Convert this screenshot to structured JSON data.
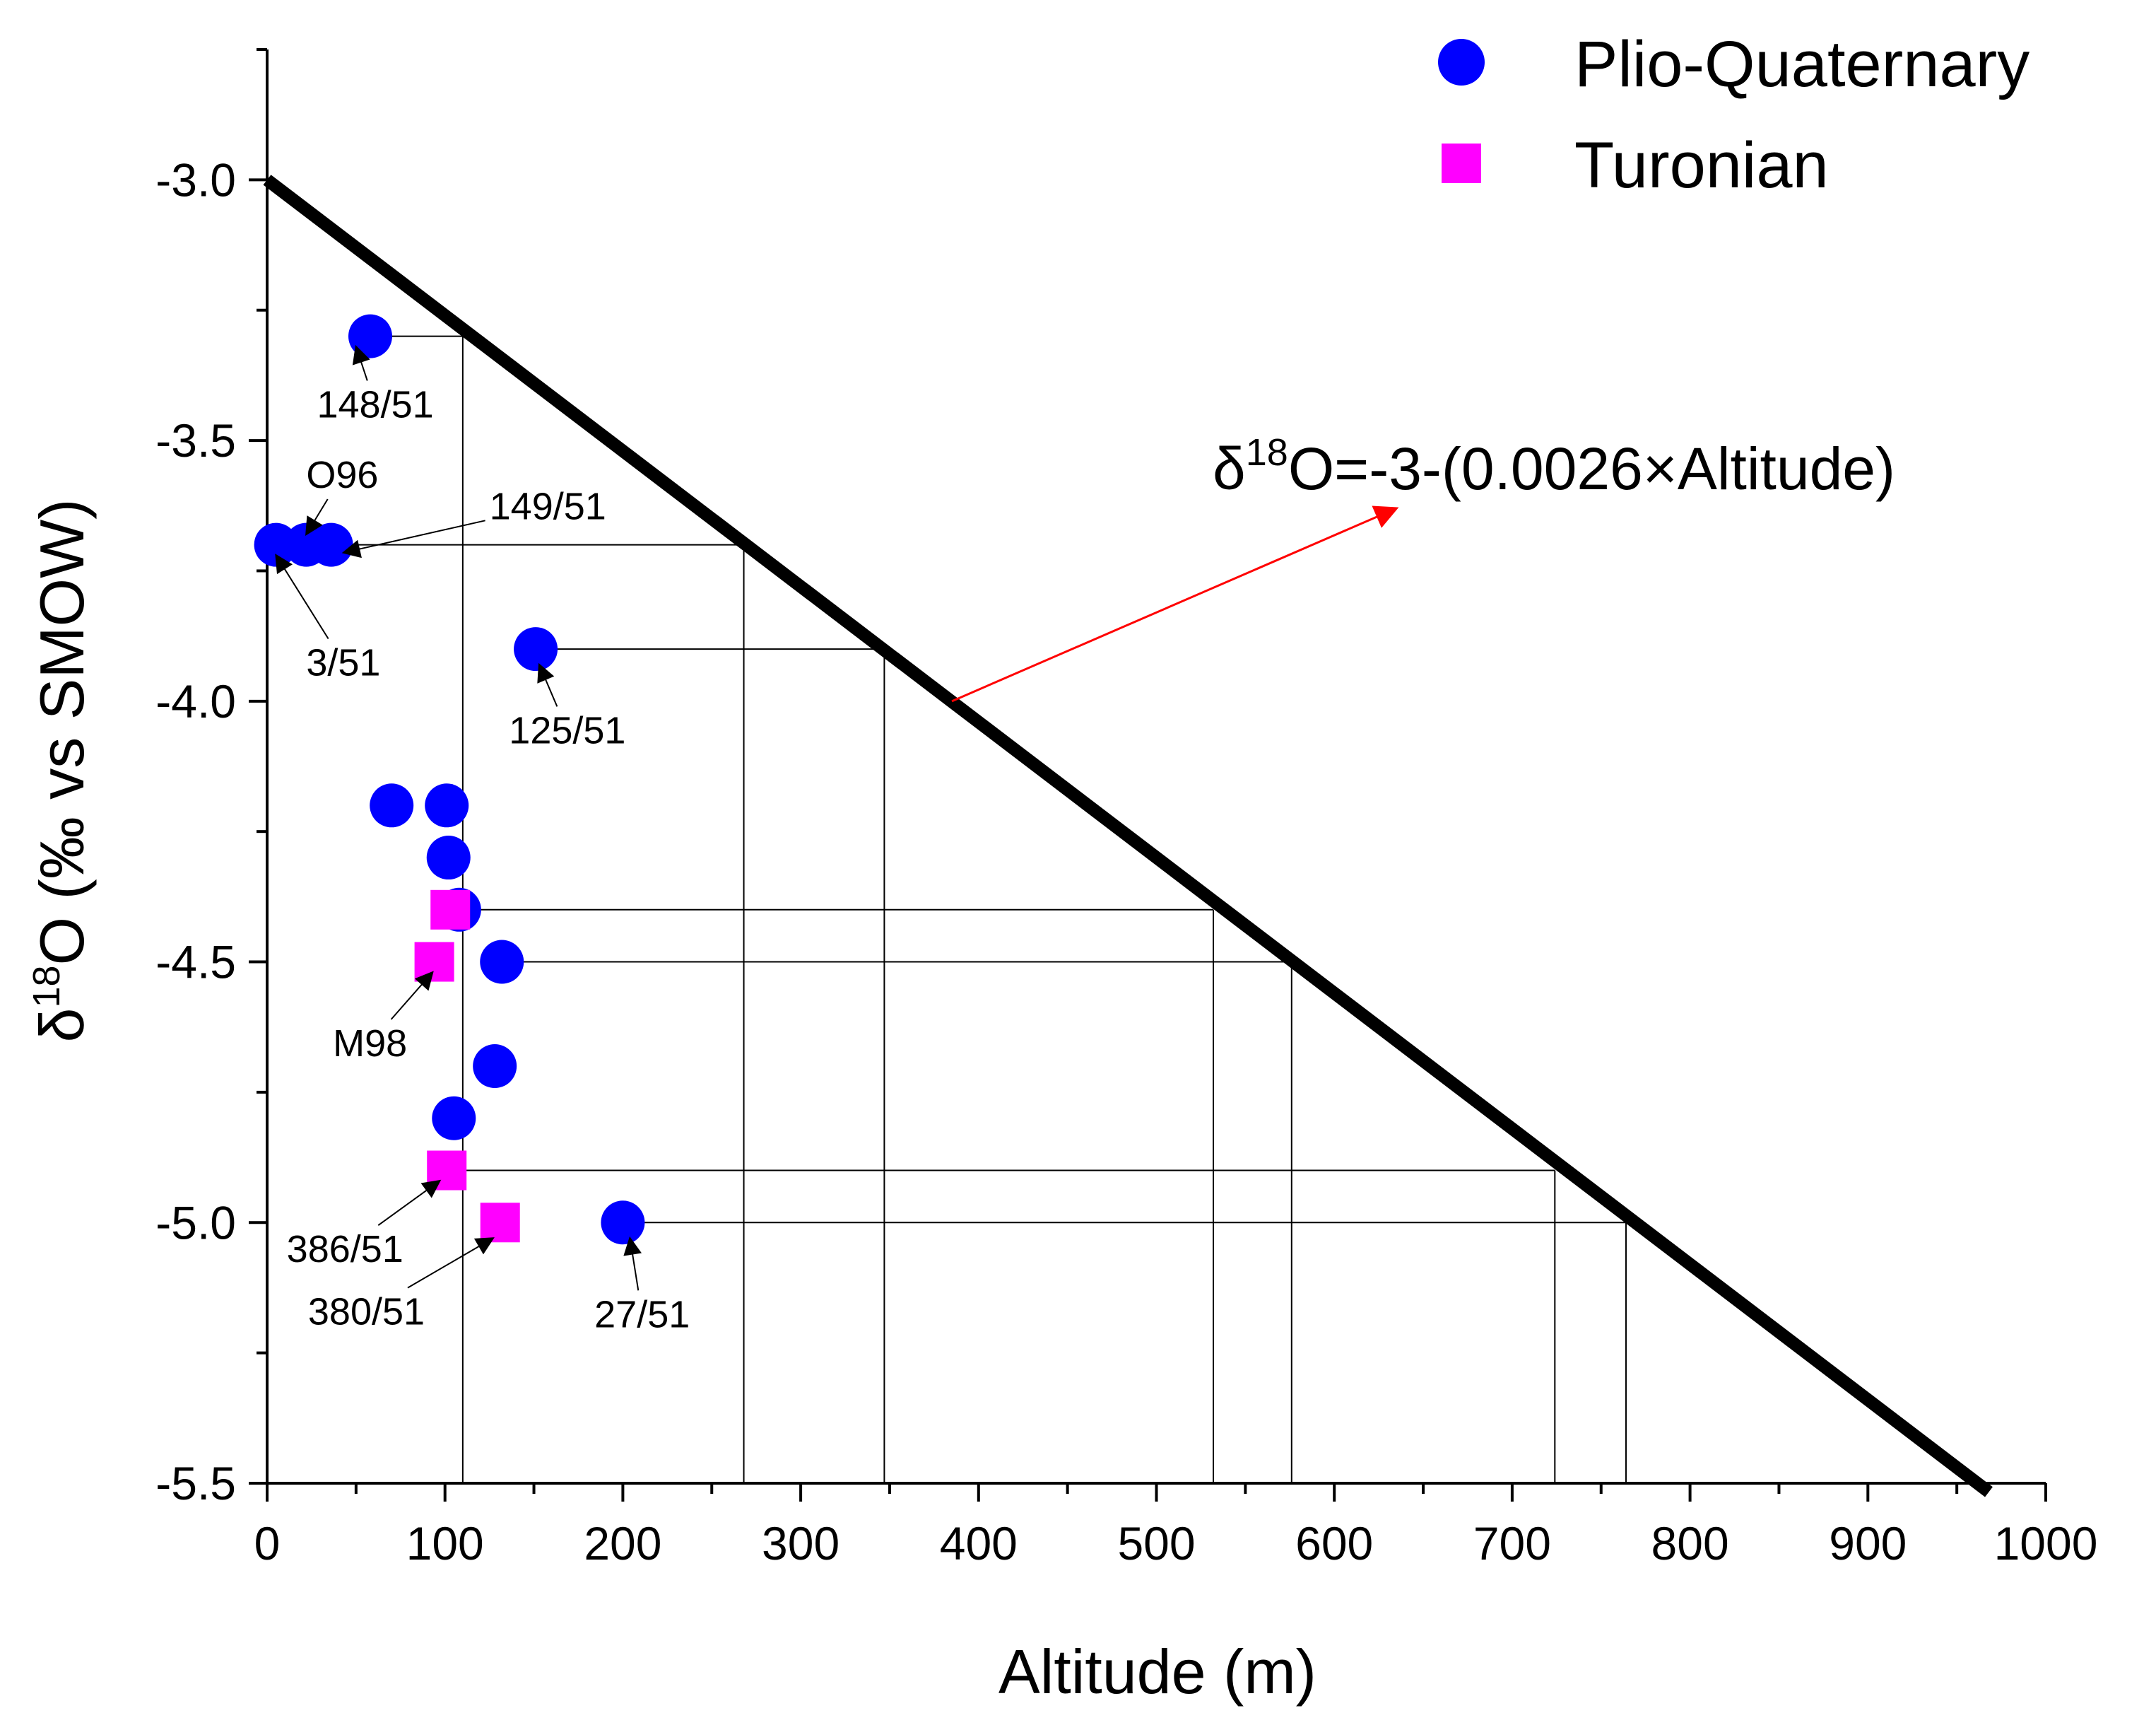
{
  "chart_data": {
    "type": "scatter",
    "xlabel": "Altitude (m)",
    "ylabel": {
      "prefix": "δ",
      "sup": "18",
      "rest": "O (‰ vs SMOW)"
    },
    "xlim": [
      0,
      1000
    ],
    "ylim": [
      -5.5,
      -2.75
    ],
    "x_ticks": [
      "0",
      "100",
      "200",
      "300",
      "400",
      "500",
      "600",
      "700",
      "800",
      "900",
      "1000"
    ],
    "x_tick_values": [
      0,
      100,
      200,
      300,
      400,
      500,
      600,
      700,
      800,
      900,
      1000
    ],
    "y_ticks": [
      "-3.0",
      "-3.5",
      "-4.0",
      "-4.5",
      "-5.0",
      "-5.5"
    ],
    "y_tick_values": [
      -3.0,
      -3.5,
      -4.0,
      -4.5,
      -5.0,
      -5.5
    ],
    "legend_position": "top-right",
    "series": [
      {
        "name": "Plio-Quaternary",
        "marker": "circle",
        "color": "#0000FF",
        "points": [
          {
            "x": 58,
            "y": -3.3
          },
          {
            "x": 5,
            "y": -3.7
          },
          {
            "x": 22,
            "y": -3.7
          },
          {
            "x": 36,
            "y": -3.7
          },
          {
            "x": 151,
            "y": -3.9
          },
          {
            "x": 70,
            "y": -4.2
          },
          {
            "x": 101,
            "y": -4.2
          },
          {
            "x": 102,
            "y": -4.3
          },
          {
            "x": 108,
            "y": -4.4
          },
          {
            "x": 132,
            "y": -4.5
          },
          {
            "x": 128,
            "y": -4.7
          },
          {
            "x": 105,
            "y": -4.8
          },
          {
            "x": 200,
            "y": -5.0
          }
        ]
      },
      {
        "name": "Turonian",
        "marker": "square",
        "color": "#FF00FF",
        "points": [
          {
            "x": 103,
            "y": -4.4
          },
          {
            "x": 94,
            "y": -4.5
          },
          {
            "x": 101,
            "y": -4.9
          },
          {
            "x": 131,
            "y": -5.0
          }
        ]
      }
    ],
    "regression_line": {
      "intercept": -3.0,
      "slope": -0.0026,
      "x_range": [
        0,
        968
      ],
      "color": "#000000",
      "equation": {
        "prefix": "δ",
        "sup": "18",
        "rest": "O=-3-(0.0026×Altitude)"
      },
      "arrow_color": "#FF0000",
      "arrow_from": {
        "x": 385,
        "y": -4.0
      },
      "arrow_to": {
        "x": 635,
        "y": -3.63
      }
    },
    "projections": [
      {
        "y": -3.3,
        "x_start": 58,
        "x_end": 110
      },
      {
        "y": -3.7,
        "x_start": 36,
        "x_end": 268
      },
      {
        "y": -3.9,
        "x_start": 151,
        "x_end": 347
      },
      {
        "y": -4.4,
        "x_start": 108,
        "x_end": 532
      },
      {
        "y": -4.5,
        "x_start": 132,
        "x_end": 576
      },
      {
        "y": -4.9,
        "x_start": 101,
        "x_end": 724
      },
      {
        "y": -5.0,
        "x_start": 200,
        "x_end": 764
      }
    ],
    "annotations": [
      {
        "text": "148/51",
        "x": 28,
        "y": -3.43,
        "arrow_to": {
          "x": 50,
          "y": -3.32
        }
      },
      {
        "text": "O96",
        "x": 22,
        "y": -3.565,
        "arrow_to": {
          "x": 22,
          "y": -3.68
        }
      },
      {
        "text": "149/51",
        "x": 125,
        "y": -3.625,
        "arrow_to": {
          "x": 43,
          "y": -3.715
        }
      },
      {
        "text": "3/51",
        "x": 22,
        "y": -3.925,
        "arrow_to": {
          "x": 5,
          "y": -3.72
        }
      },
      {
        "text": "125/51",
        "x": 136,
        "y": -4.055,
        "arrow_to": {
          "x": 153,
          "y": -3.93
        }
      },
      {
        "text": "M98",
        "x": 37,
        "y": -4.655,
        "arrow_to": {
          "x": 93,
          "y": -4.52
        }
      },
      {
        "text": "386/51",
        "x": 11,
        "y": -5.05,
        "arrow_to": {
          "x": 97,
          "y": -4.92
        }
      },
      {
        "text": "380/51",
        "x": 23,
        "y": -5.17,
        "arrow_to": {
          "x": 127,
          "y": -5.03
        }
      },
      {
        "text": "27/51",
        "x": 184,
        "y": -5.175,
        "arrow_to": {
          "x": 204,
          "y": -5.03
        }
      }
    ]
  }
}
